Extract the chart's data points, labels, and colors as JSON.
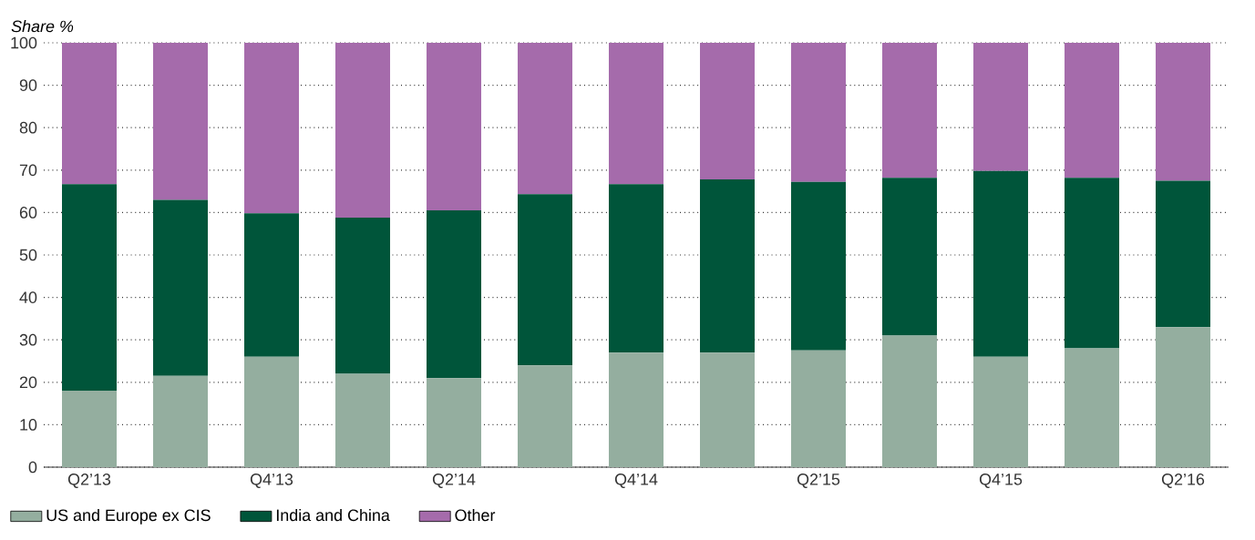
{
  "chart_data": {
    "type": "bar",
    "stacked": true,
    "ylabel": "*Share %*",
    "categories": [
      "Q2’13",
      null,
      "Q4’13",
      null,
      "Q2’14",
      null,
      "Q4’14",
      null,
      "Q2’15",
      null,
      "Q4’15",
      null,
      "Q2’16"
    ],
    "series": [
      {
        "name": "US and Europe ex CIS",
        "color": "#94ae9f",
        "values": [
          18,
          21.5,
          26,
          22,
          21,
          24,
          27,
          27,
          27.5,
          31,
          26,
          28,
          33
        ]
      },
      {
        "name": "India and China",
        "color": "#00553a",
        "values": [
          48.7,
          41.5,
          33.8,
          36.8,
          39.5,
          40.3,
          39.7,
          40.8,
          39.7,
          37.2,
          43.8,
          40.2,
          34.5
        ]
      },
      {
        "name": "Other",
        "color": "#a56bab",
        "values": [
          33.3,
          37,
          40.2,
          41.2,
          39.5,
          35.7,
          33.3,
          32.2,
          32.8,
          31.8,
          30.2,
          31.8,
          32.5
        ]
      }
    ],
    "ylim": [
      0,
      100
    ],
    "yticks": [
      0,
      10,
      20,
      30,
      40,
      50,
      60,
      70,
      80,
      90,
      100
    ],
    "grid": "y",
    "legend": "bottom"
  }
}
